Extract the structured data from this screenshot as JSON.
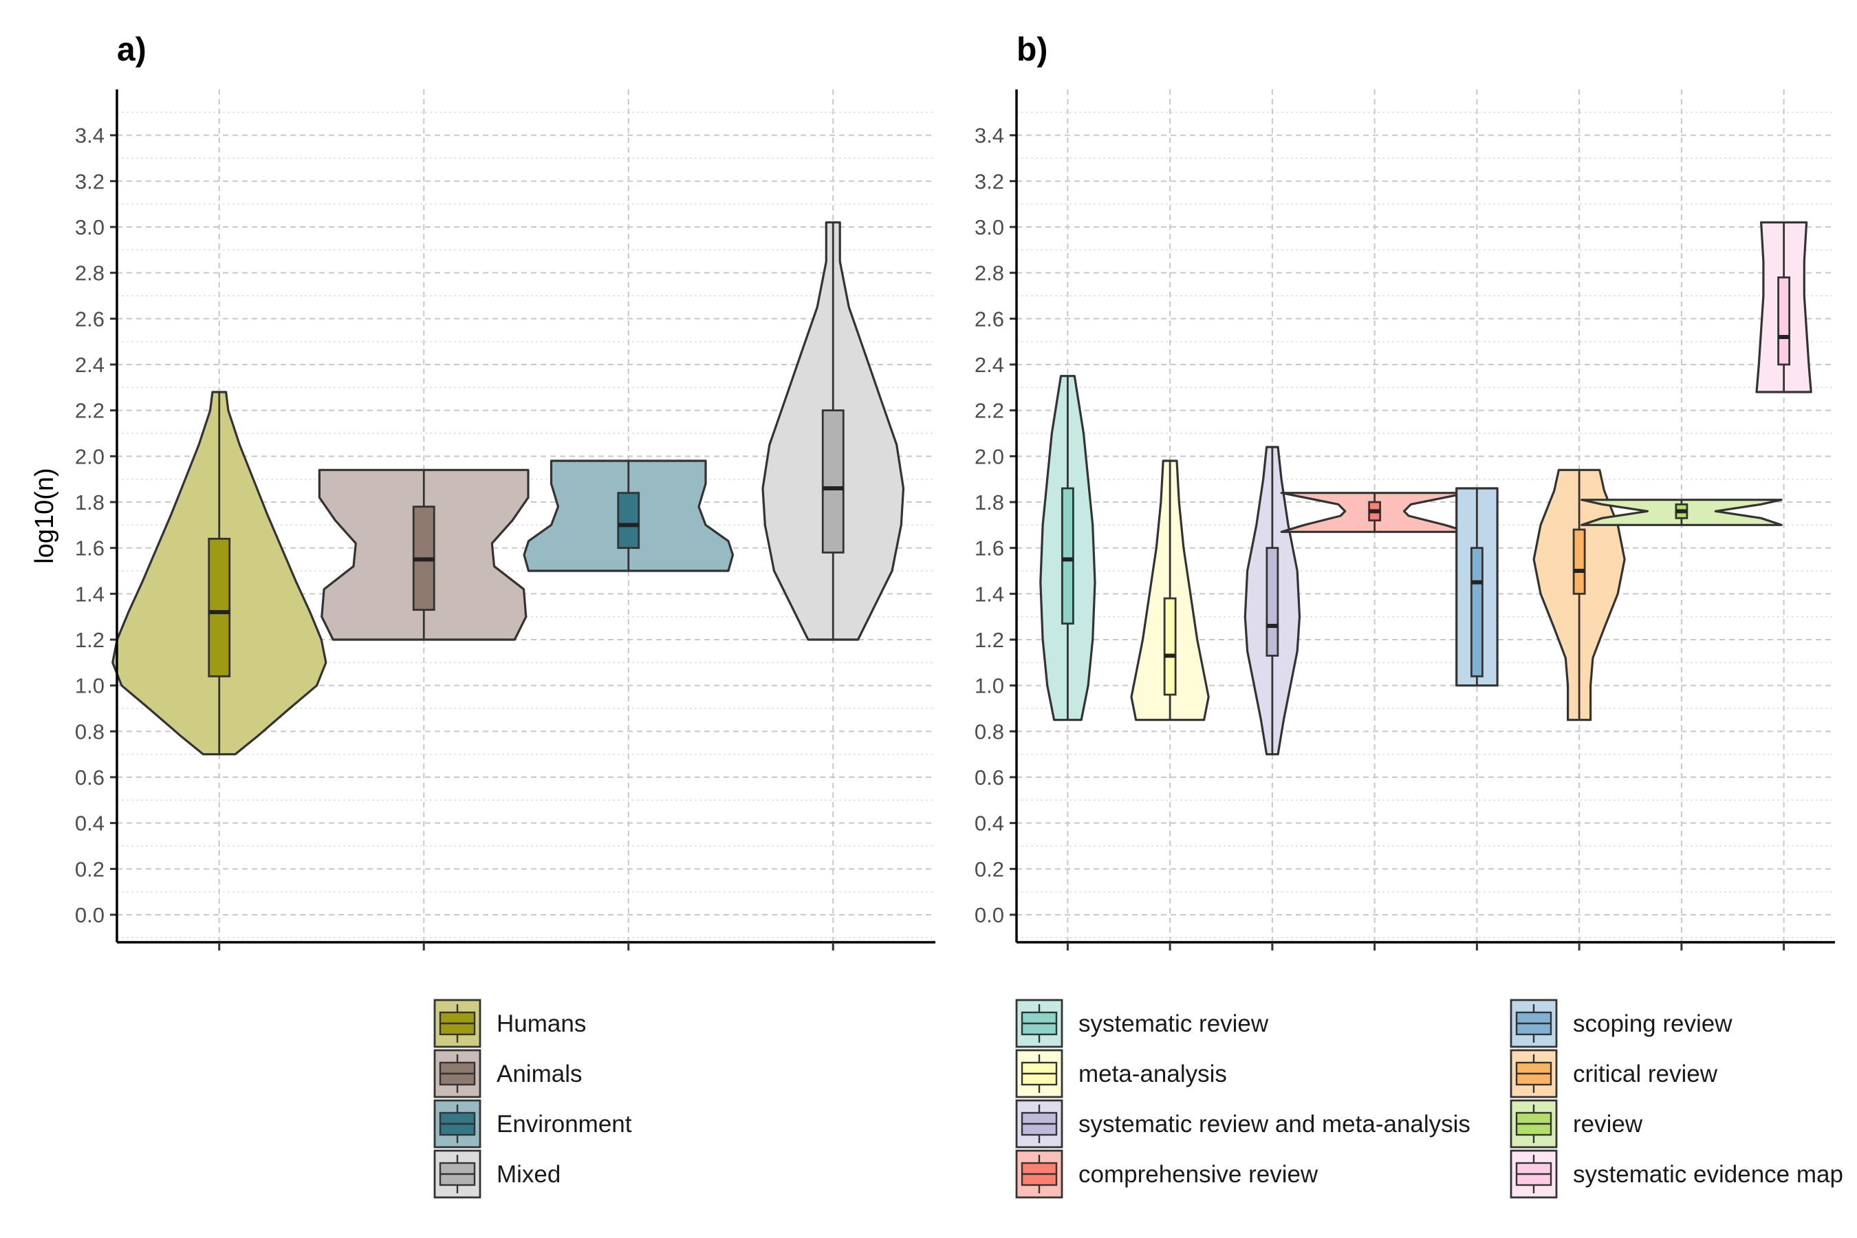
{
  "chart_data": [
    {
      "panel": "a)",
      "type": "violin",
      "ylabel": "log10(n)",
      "ylim": [
        -0.12,
        3.6
      ],
      "yticks": [
        "0.0",
        "0.2",
        "0.4",
        "0.6",
        "0.8",
        "1.0",
        "1.2",
        "1.4",
        "1.6",
        "1.8",
        "2.0",
        "2.2",
        "2.4",
        "2.6",
        "2.8",
        "3.0",
        "3.2",
        "3.4"
      ],
      "grid": true,
      "legend_position": "bottom",
      "series": [
        {
          "name": "Humans",
          "fill": "#9e9a13",
          "violin_fill": "#cfcd84",
          "min": 0.7,
          "q1": 1.04,
          "median": 1.32,
          "q3": 1.64,
          "max": 2.28,
          "density": [
            [
              0.7,
              0.14
            ],
            [
              0.78,
              0.34
            ],
            [
              0.9,
              0.62
            ],
            [
              1.0,
              0.86
            ],
            [
              1.1,
              0.94
            ],
            [
              1.2,
              0.9
            ],
            [
              1.32,
              0.8
            ],
            [
              1.45,
              0.68
            ],
            [
              1.6,
              0.55
            ],
            [
              1.75,
              0.42
            ],
            [
              1.9,
              0.3
            ],
            [
              2.05,
              0.18
            ],
            [
              2.2,
              0.08
            ],
            [
              2.28,
              0.06
            ]
          ]
        },
        {
          "name": "Animals",
          "fill": "#8e7a6e",
          "violin_fill": "#c9bcb6",
          "min": 1.2,
          "q1": 1.33,
          "median": 1.55,
          "q3": 1.78,
          "max": 1.94,
          "density": [
            [
              1.2,
              0.8
            ],
            [
              1.3,
              0.9
            ],
            [
              1.42,
              0.88
            ],
            [
              1.52,
              0.62
            ],
            [
              1.62,
              0.6
            ],
            [
              1.72,
              0.78
            ],
            [
              1.82,
              0.92
            ],
            [
              1.94,
              0.92
            ]
          ]
        },
        {
          "name": "Environment",
          "fill": "#357687",
          "violin_fill": "#98bac3",
          "min": 1.5,
          "q1": 1.6,
          "median": 1.7,
          "q3": 1.84,
          "max": 1.98,
          "density": [
            [
              1.5,
              0.88
            ],
            [
              1.57,
              0.92
            ],
            [
              1.63,
              0.88
            ],
            [
              1.7,
              0.68
            ],
            [
              1.78,
              0.62
            ],
            [
              1.88,
              0.68
            ],
            [
              1.98,
              0.68
            ]
          ]
        },
        {
          "name": "Mixed",
          "fill": "#b2b2b2",
          "violin_fill": "#dcdcdc",
          "min": 1.2,
          "q1": 1.58,
          "median": 1.86,
          "q3": 2.2,
          "max": 3.02,
          "density": [
            [
              1.2,
              0.22
            ],
            [
              1.32,
              0.34
            ],
            [
              1.5,
              0.52
            ],
            [
              1.7,
              0.6
            ],
            [
              1.86,
              0.62
            ],
            [
              2.05,
              0.56
            ],
            [
              2.25,
              0.42
            ],
            [
              2.45,
              0.28
            ],
            [
              2.65,
              0.14
            ],
            [
              2.85,
              0.06
            ],
            [
              3.02,
              0.06
            ]
          ]
        }
      ]
    },
    {
      "panel": "b)",
      "type": "violin",
      "ylabel": "",
      "ylim": [
        -0.12,
        3.6
      ],
      "yticks": [
        "0.0",
        "0.2",
        "0.4",
        "0.6",
        "0.8",
        "1.0",
        "1.2",
        "1.4",
        "1.6",
        "1.8",
        "2.0",
        "2.2",
        "2.4",
        "2.6",
        "2.8",
        "3.0",
        "3.2",
        "3.4"
      ],
      "grid": true,
      "legend_position": "bottom",
      "series": [
        {
          "name": "systematic review",
          "fill": "#8dd3c7",
          "violin_fill": "#c6e9e3",
          "min": 0.85,
          "q1": 1.27,
          "median": 1.55,
          "q3": 1.86,
          "max": 2.35,
          "density": [
            [
              0.85,
              0.12
            ],
            [
              1.0,
              0.18
            ],
            [
              1.2,
              0.22
            ],
            [
              1.45,
              0.24
            ],
            [
              1.7,
              0.22
            ],
            [
              1.9,
              0.18
            ],
            [
              2.1,
              0.14
            ],
            [
              2.35,
              0.06
            ]
          ]
        },
        {
          "name": "meta-analysis",
          "fill": "#ffffb3",
          "violin_fill": "#fffdd8",
          "min": 0.85,
          "q1": 0.96,
          "median": 1.13,
          "q3": 1.38,
          "max": 1.98,
          "density": [
            [
              0.85,
              0.3
            ],
            [
              0.95,
              0.34
            ],
            [
              1.05,
              0.3
            ],
            [
              1.2,
              0.24
            ],
            [
              1.4,
              0.18
            ],
            [
              1.6,
              0.12
            ],
            [
              1.8,
              0.08
            ],
            [
              1.98,
              0.06
            ]
          ]
        },
        {
          "name": "systematic review and meta-analysis",
          "fill": "#bebada",
          "violin_fill": "#dfdced",
          "min": 0.7,
          "q1": 1.13,
          "median": 1.26,
          "q3": 1.6,
          "max": 2.04,
          "density": [
            [
              0.7,
              0.05
            ],
            [
              0.85,
              0.1
            ],
            [
              1.0,
              0.16
            ],
            [
              1.15,
              0.22
            ],
            [
              1.3,
              0.24
            ],
            [
              1.5,
              0.22
            ],
            [
              1.7,
              0.14
            ],
            [
              1.9,
              0.08
            ],
            [
              2.04,
              0.05
            ]
          ]
        },
        {
          "name": "comprehensive review",
          "fill": "#fb8072",
          "violin_fill": "#fdc0b8",
          "min": 1.67,
          "q1": 1.72,
          "median": 1.76,
          "q3": 1.8,
          "max": 1.84,
          "density": [
            [
              1.67,
              0.82
            ],
            [
              1.7,
              0.62
            ],
            [
              1.74,
              0.3
            ],
            [
              1.76,
              0.26
            ],
            [
              1.79,
              0.32
            ],
            [
              1.82,
              0.62
            ],
            [
              1.84,
              0.82
            ]
          ]
        },
        {
          "name": "scoping review",
          "fill": "#80b1d3",
          "violin_fill": "#bfd8e9",
          "min": 1.0,
          "q1": 1.04,
          "median": 1.45,
          "q3": 1.6,
          "max": 1.86,
          "density": [
            [
              1.0,
              0.18
            ],
            [
              1.2,
              0.18
            ],
            [
              1.4,
              0.18
            ],
            [
              1.6,
              0.18
            ],
            [
              1.86,
              0.18
            ]
          ]
        },
        {
          "name": "critical review",
          "fill": "#fdb462",
          "violin_fill": "#fedab0",
          "min": 0.85,
          "q1": 1.4,
          "median": 1.5,
          "q3": 1.68,
          "max": 1.94,
          "density": [
            [
              0.85,
              0.1
            ],
            [
              1.0,
              0.1
            ],
            [
              1.12,
              0.12
            ],
            [
              1.25,
              0.22
            ],
            [
              1.4,
              0.34
            ],
            [
              1.55,
              0.4
            ],
            [
              1.7,
              0.34
            ],
            [
              1.85,
              0.22
            ],
            [
              1.94,
              0.18
            ]
          ]
        },
        {
          "name": "review",
          "fill": "#b3de69",
          "violin_fill": "#d9eeb4",
          "min": 1.7,
          "q1": 1.73,
          "median": 1.76,
          "q3": 1.79,
          "max": 1.81,
          "density": [
            [
              1.7,
              0.88
            ],
            [
              1.73,
              0.7
            ],
            [
              1.76,
              0.3
            ],
            [
              1.79,
              0.7
            ],
            [
              1.81,
              0.88
            ]
          ]
        },
        {
          "name": "systematic evidence map",
          "fill": "#fccde5",
          "violin_fill": "#fde6f2",
          "min": 2.28,
          "q1": 2.4,
          "median": 2.52,
          "q3": 2.78,
          "max": 3.02,
          "density": [
            [
              2.28,
              0.24
            ],
            [
              2.4,
              0.22
            ],
            [
              2.55,
              0.2
            ],
            [
              2.7,
              0.18
            ],
            [
              2.85,
              0.18
            ],
            [
              3.02,
              0.2
            ]
          ]
        }
      ]
    }
  ]
}
